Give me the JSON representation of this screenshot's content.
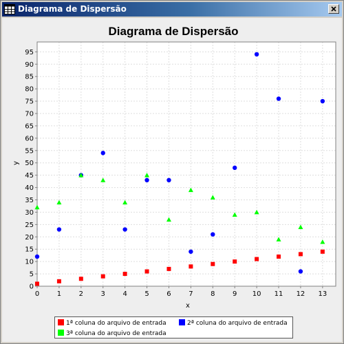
{
  "window": {
    "title": "Diagrama de Dispersão"
  },
  "chart_data": {
    "type": "scatter",
    "title": "Diagrama de Dispersão",
    "xlabel": "x",
    "ylabel": "y",
    "xlim": [
      0,
      13.6
    ],
    "ylim": [
      0,
      99
    ],
    "x_ticks": [
      0,
      1,
      2,
      3,
      4,
      5,
      6,
      7,
      8,
      9,
      10,
      11,
      12,
      13
    ],
    "y_ticks": [
      0,
      5,
      10,
      15,
      20,
      25,
      30,
      35,
      40,
      45,
      50,
      55,
      60,
      65,
      70,
      75,
      80,
      85,
      90,
      95
    ],
    "grid": true,
    "legend_position": "bottom",
    "series": [
      {
        "name": "1ª coluna do arquivo de entrada",
        "color": "#ff0000",
        "marker": "square",
        "x": [
          0,
          1,
          2,
          3,
          4,
          5,
          6,
          7,
          8,
          9,
          10,
          11,
          12,
          13
        ],
        "y": [
          1,
          2,
          3,
          4,
          5,
          6,
          7,
          8,
          9,
          10,
          11,
          12,
          13,
          14
        ]
      },
      {
        "name": "2ª coluna do arquivo de entrada",
        "color": "#0000ff",
        "marker": "circle",
        "x": [
          0,
          1,
          2,
          3,
          4,
          5,
          6,
          7,
          8,
          9,
          10,
          11,
          12,
          13
        ],
        "y": [
          12,
          23,
          45,
          54,
          23,
          43,
          43,
          14,
          21,
          48,
          94,
          76,
          6,
          75
        ]
      },
      {
        "name": "3ª coluna do arquivo de entrada",
        "color": "#00ff00",
        "marker": "triangle",
        "x": [
          0,
          1,
          2,
          3,
          4,
          5,
          6,
          7,
          8,
          9,
          10,
          11,
          12,
          13
        ],
        "y": [
          32,
          34,
          45,
          43,
          34,
          45,
          27,
          39,
          36,
          29,
          30,
          19,
          24,
          18
        ]
      }
    ]
  }
}
